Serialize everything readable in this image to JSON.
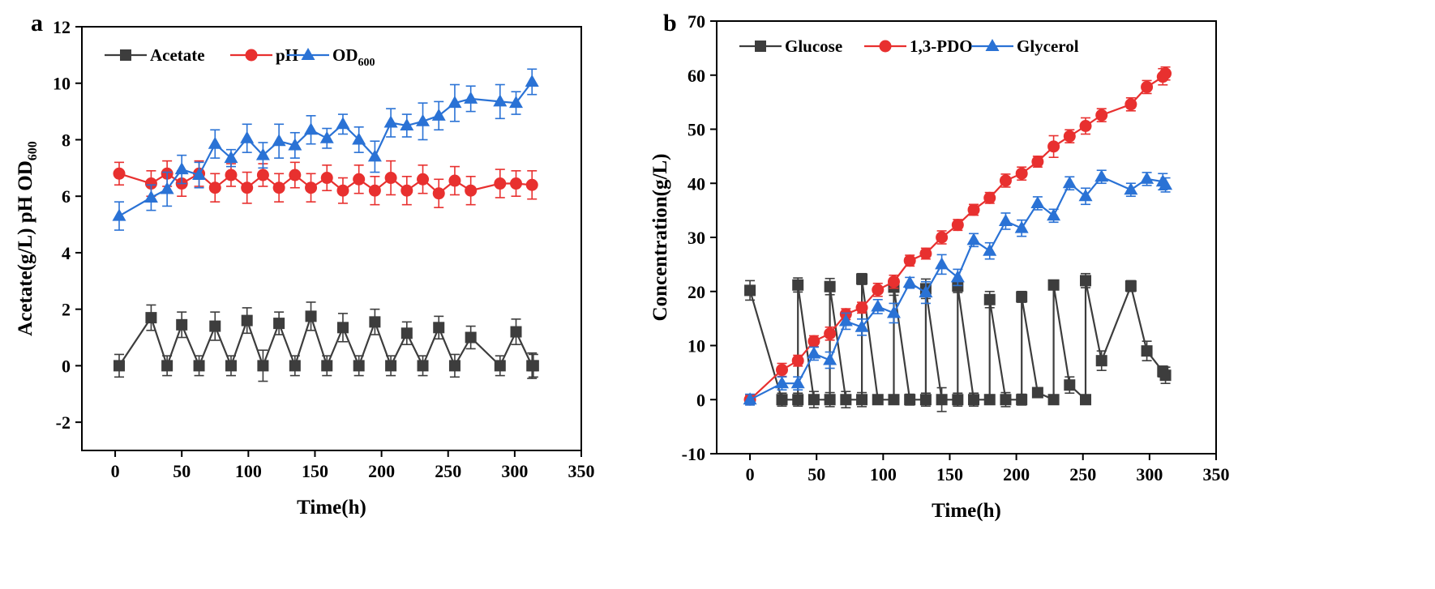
{
  "chart_data": [
    {
      "panel_label": "a",
      "type": "line",
      "xlabel": "Time(h)",
      "ylabel": "Acetate(g/L)  pH  OD",
      "ylabel_sub": "600",
      "xlim": [
        -25,
        350
      ],
      "ylim": [
        -3,
        12
      ],
      "x_ticks": [
        0,
        50,
        100,
        150,
        200,
        250,
        300,
        350
      ],
      "y_ticks": [
        -2,
        0,
        2,
        4,
        6,
        8,
        10,
        12
      ],
      "legend_position": "top-left",
      "series": [
        {
          "name": "Acetate",
          "color": "#3d3d3d",
          "marker": "square",
          "x": [
            3,
            27,
            39,
            50,
            63,
            75,
            87,
            99,
            111,
            123,
            135,
            147,
            159,
            171,
            183,
            195,
            207,
            219,
            231,
            243,
            255,
            267,
            289,
            301,
            313,
            314
          ],
          "y": [
            0,
            1.7,
            0,
            1.45,
            0,
            1.4,
            0,
            1.6,
            0,
            1.5,
            0,
            1.75,
            0,
            1.35,
            0,
            1.55,
            0,
            1.15,
            0,
            1.35,
            0,
            1.0,
            0,
            1.2,
            0,
            0
          ],
          "err": [
            0.4,
            0.45,
            0.35,
            0.45,
            0.35,
            0.5,
            0.35,
            0.45,
            0.55,
            0.4,
            0.35,
            0.5,
            0.35,
            0.5,
            0.35,
            0.45,
            0.35,
            0.4,
            0.35,
            0.4,
            0.4,
            0.4,
            0.35,
            0.45,
            0.45,
            0.4
          ]
        },
        {
          "name": "pH",
          "color": "#e8302f",
          "marker": "circle",
          "x": [
            3,
            27,
            39,
            50,
            63,
            75,
            87,
            99,
            111,
            123,
            135,
            147,
            159,
            171,
            183,
            195,
            207,
            219,
            231,
            243,
            255,
            267,
            289,
            301,
            313
          ],
          "y": [
            6.8,
            6.45,
            6.8,
            6.45,
            6.8,
            6.3,
            6.75,
            6.3,
            6.75,
            6.3,
            6.75,
            6.3,
            6.65,
            6.2,
            6.6,
            6.2,
            6.65,
            6.2,
            6.6,
            6.1,
            6.55,
            6.2,
            6.45,
            6.45,
            6.4
          ],
          "err": [
            0.4,
            0.45,
            0.45,
            0.45,
            0.45,
            0.5,
            0.4,
            0.55,
            0.4,
            0.5,
            0.45,
            0.5,
            0.45,
            0.45,
            0.5,
            0.5,
            0.6,
            0.5,
            0.5,
            0.5,
            0.5,
            0.5,
            0.5,
            0.45,
            0.5
          ]
        },
        {
          "name": "OD",
          "name_sub": "600",
          "color": "#2a72d5",
          "marker": "triangle",
          "x": [
            3,
            27,
            39,
            50,
            63,
            75,
            87,
            99,
            111,
            123,
            135,
            147,
            159,
            171,
            183,
            195,
            207,
            219,
            231,
            243,
            255,
            267,
            289,
            301,
            313
          ],
          "y": [
            5.3,
            5.95,
            6.25,
            6.95,
            6.75,
            7.85,
            7.35,
            8.05,
            7.45,
            7.95,
            7.8,
            8.35,
            8.05,
            8.55,
            8.0,
            7.4,
            8.6,
            8.5,
            8.65,
            8.85,
            9.3,
            9.45,
            9.35,
            9.3,
            10.05
          ],
          "err": [
            0.5,
            0.45,
            0.6,
            0.5,
            0.45,
            0.5,
            0.3,
            0.5,
            0.45,
            0.6,
            0.45,
            0.5,
            0.35,
            0.35,
            0.45,
            0.55,
            0.5,
            0.4,
            0.65,
            0.5,
            0.65,
            0.45,
            0.6,
            0.4,
            0.45
          ]
        }
      ]
    },
    {
      "panel_label": "b",
      "type": "line",
      "xlabel": "Time(h)",
      "ylabel": "Concentration(g/L)",
      "xlim": [
        -25,
        350
      ],
      "ylim": [
        -10,
        70
      ],
      "x_ticks": [
        0,
        50,
        100,
        150,
        200,
        250,
        300,
        350
      ],
      "y_ticks": [
        -10,
        0,
        10,
        20,
        30,
        40,
        50,
        60,
        70
      ],
      "legend_position": "top-left",
      "series": [
        {
          "name": "Glucose",
          "color": "#3d3d3d",
          "marker": "square",
          "x": [
            0,
            24,
            36,
            36,
            48,
            60,
            60,
            72,
            84,
            84,
            96,
            108,
            108,
            120,
            132,
            132,
            144,
            156,
            156,
            168,
            180,
            180,
            192,
            204,
            204,
            216,
            228,
            228,
            240,
            252,
            252,
            264,
            286,
            298,
            310,
            312
          ],
          "y": [
            20.2,
            0,
            0,
            21.2,
            0,
            0,
            20.9,
            0,
            0,
            22.3,
            0,
            0,
            20.8,
            0,
            0,
            20.5,
            0,
            0,
            21.0,
            0,
            0,
            18.5,
            0,
            0,
            19.0,
            1.3,
            0,
            21.2,
            2.7,
            0,
            22.0,
            7.2,
            21.0,
            9.0,
            5.2,
            4.5
          ],
          "err": [
            1.8,
            1.2,
            1.2,
            1.3,
            1.5,
            1.3,
            1.5,
            1.5,
            1.3,
            1.0,
            0.8,
            0.8,
            1.5,
            1.0,
            1.2,
            1.8,
            2.2,
            1.2,
            1.2,
            1.2,
            0.9,
            1.5,
            1.3,
            1.0,
            1.0,
            0.8,
            0.6,
            0.6,
            1.5,
            0.6,
            1.3,
            1.8,
            1.0,
            1.8,
            1.0,
            1.5
          ]
        },
        {
          "name": "1,3-PDO",
          "color": "#e8302f",
          "marker": "circle",
          "x": [
            0,
            24,
            36,
            48,
            60,
            72,
            84,
            96,
            108,
            120,
            132,
            144,
            156,
            168,
            180,
            192,
            204,
            216,
            228,
            240,
            252,
            264,
            286,
            298,
            310,
            312
          ],
          "y": [
            0,
            5.5,
            7.2,
            10.8,
            12.2,
            15.8,
            17.0,
            20.3,
            21.8,
            25.7,
            27.0,
            30.0,
            32.3,
            35.1,
            37.3,
            40.5,
            41.8,
            44.0,
            46.8,
            48.7,
            50.6,
            52.6,
            54.6,
            57.8,
            59.7,
            60.3
          ],
          "err": [
            0.8,
            1.2,
            1.0,
            1.0,
            1.2,
            1.0,
            1.0,
            1.2,
            1.2,
            1.0,
            1.0,
            1.2,
            1.0,
            1.0,
            1.0,
            1.2,
            1.2,
            1.0,
            2.0,
            1.2,
            1.5,
            1.2,
            1.2,
            1.2,
            1.5,
            1.2
          ]
        },
        {
          "name": "Glycerol",
          "color": "#2a72d5",
          "marker": "triangle",
          "x": [
            0,
            24,
            36,
            48,
            60,
            72,
            84,
            96,
            108,
            120,
            132,
            144,
            156,
            168,
            180,
            192,
            204,
            216,
            228,
            240,
            252,
            264,
            286,
            298,
            310,
            312
          ],
          "y": [
            0,
            3.0,
            3.0,
            8.5,
            7.3,
            14.5,
            13.4,
            17.2,
            16.0,
            21.6,
            19.8,
            25.0,
            22.6,
            29.5,
            27.5,
            33.0,
            31.7,
            36.3,
            34.0,
            40.0,
            37.6,
            41.2,
            38.8,
            40.8,
            40.3,
            39.7
          ],
          "err": [
            1.0,
            1.2,
            1.2,
            1.2,
            1.5,
            1.5,
            1.5,
            1.3,
            1.8,
            1.0,
            2.0,
            1.8,
            1.5,
            1.2,
            1.5,
            1.5,
            1.5,
            1.2,
            1.2,
            1.2,
            1.5,
            1.2,
            1.2,
            1.2,
            1.5,
            1.3
          ]
        }
      ]
    }
  ]
}
